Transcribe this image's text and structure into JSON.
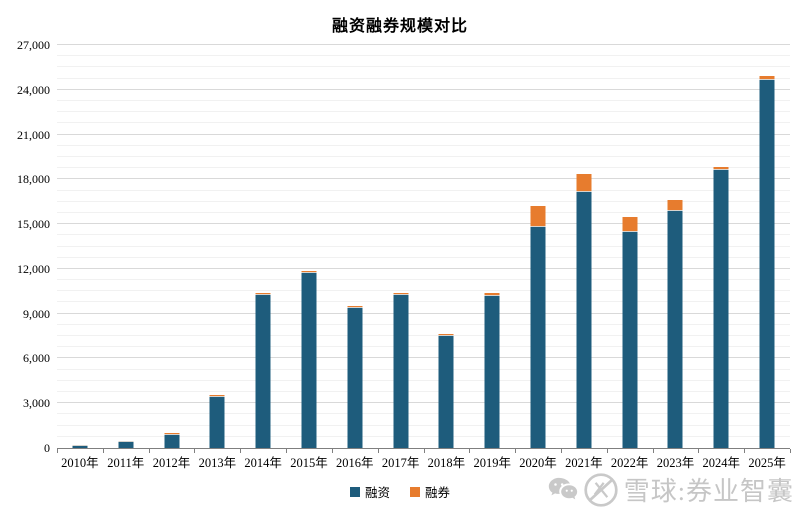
{
  "title": "融资融券规模对比",
  "legend": {
    "items": [
      {
        "label": "融资",
        "color": "#1e5c7c"
      },
      {
        "label": "融券",
        "color": "#e77c2e"
      }
    ]
  },
  "watermark": {
    "text": "雪球:券业智囊",
    "color": "#c6c6c6",
    "icons": [
      "wechat-icon",
      "xueqiu-logo-icon"
    ]
  },
  "colors": {
    "rongzi_blue": "#1e5c7c",
    "rongquan_orange": "#e77c2e",
    "segment_divider": "#d6d3ce",
    "grid_major": "#d9d9d9",
    "grid_minor": "#f1f1f1",
    "axis": "#7f7f7f"
  },
  "chart_data": {
    "type": "bar",
    "stacked": true,
    "title": "融资融券规模对比",
    "xlabel": "",
    "ylabel": "",
    "ylim": [
      0,
      27000
    ],
    "ytick_interval": 3000,
    "yminor_interval": 750,
    "yticks": [
      "0",
      "3,000",
      "6,000",
      "9,000",
      "12,000",
      "15,000",
      "18,000",
      "21,000",
      "24,000",
      "27,000"
    ],
    "grid": true,
    "legend_position": "bottom",
    "categories": [
      "2010年",
      "2011年",
      "2012年",
      "2013年",
      "2014年",
      "2015年",
      "2016年",
      "2017年",
      "2018年",
      "2019年",
      "2020年",
      "2021年",
      "2022年",
      "2023年",
      "2024年",
      "2025年"
    ],
    "series": [
      {
        "name": "融资",
        "color": "#1e5c7c",
        "values": [
          128,
          382,
          895,
          3434,
          10256,
          11742,
          9392,
          10262,
          7490,
          10193,
          14809,
          17121,
          14446,
          15851,
          18645,
          24650
        ]
      },
      {
        "name": "融券",
        "color": "#e77c2e",
        "values": [
          1,
          2,
          31,
          35,
          31,
          29,
          36,
          48,
          67,
          137,
          1370,
          1201,
          958,
          716,
          94,
          180
        ]
      }
    ]
  }
}
